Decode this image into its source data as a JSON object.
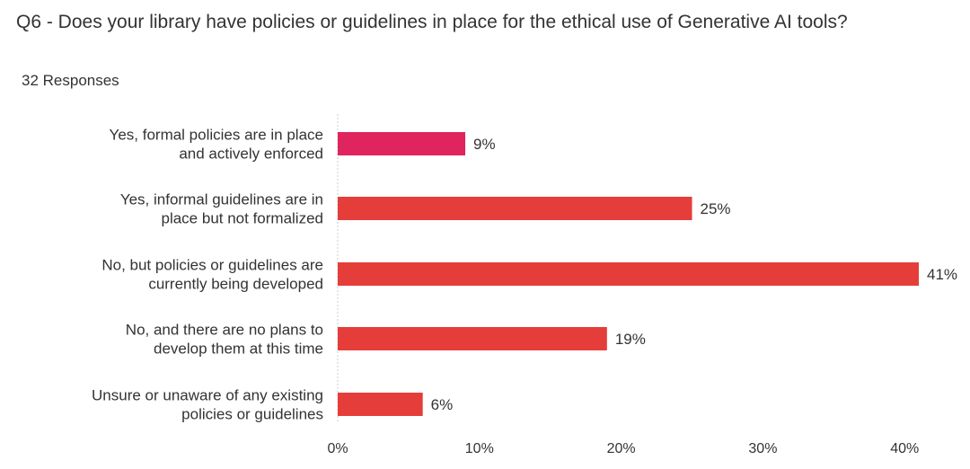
{
  "question": {
    "title": "Q6 - Does your library have policies or guidelines in place for the ethical use of Generative AI tools?",
    "responses": "32 Responses"
  },
  "chart_data": {
    "type": "bar",
    "orientation": "horizontal",
    "categories": [
      [
        "Yes, formal policies are in place",
        "and actively enforced"
      ],
      [
        "Yes, informal guidelines are in",
        "place but not formalized"
      ],
      [
        "No, but policies or guidelines are",
        "currently being developed"
      ],
      [
        "No, and there are no plans to",
        "develop them at this time"
      ],
      [
        "Unsure or unaware of any existing",
        "policies or guidelines"
      ]
    ],
    "values": [
      9,
      25,
      41,
      19,
      6
    ],
    "value_labels": [
      "9%",
      "25%",
      "41%",
      "19%",
      "6%"
    ],
    "bar_colors": [
      "#e0245e",
      "#e53e3a",
      "#e53e3a",
      "#e53e3a",
      "#e53e3a"
    ],
    "xlim": [
      0,
      41
    ],
    "xticks": [
      0,
      10,
      20,
      30,
      40
    ],
    "xtick_labels": [
      "0%",
      "10%",
      "20%",
      "30%",
      "40%"
    ],
    "grid": "baseline only",
    "baseline_color": "#cccccc"
  }
}
